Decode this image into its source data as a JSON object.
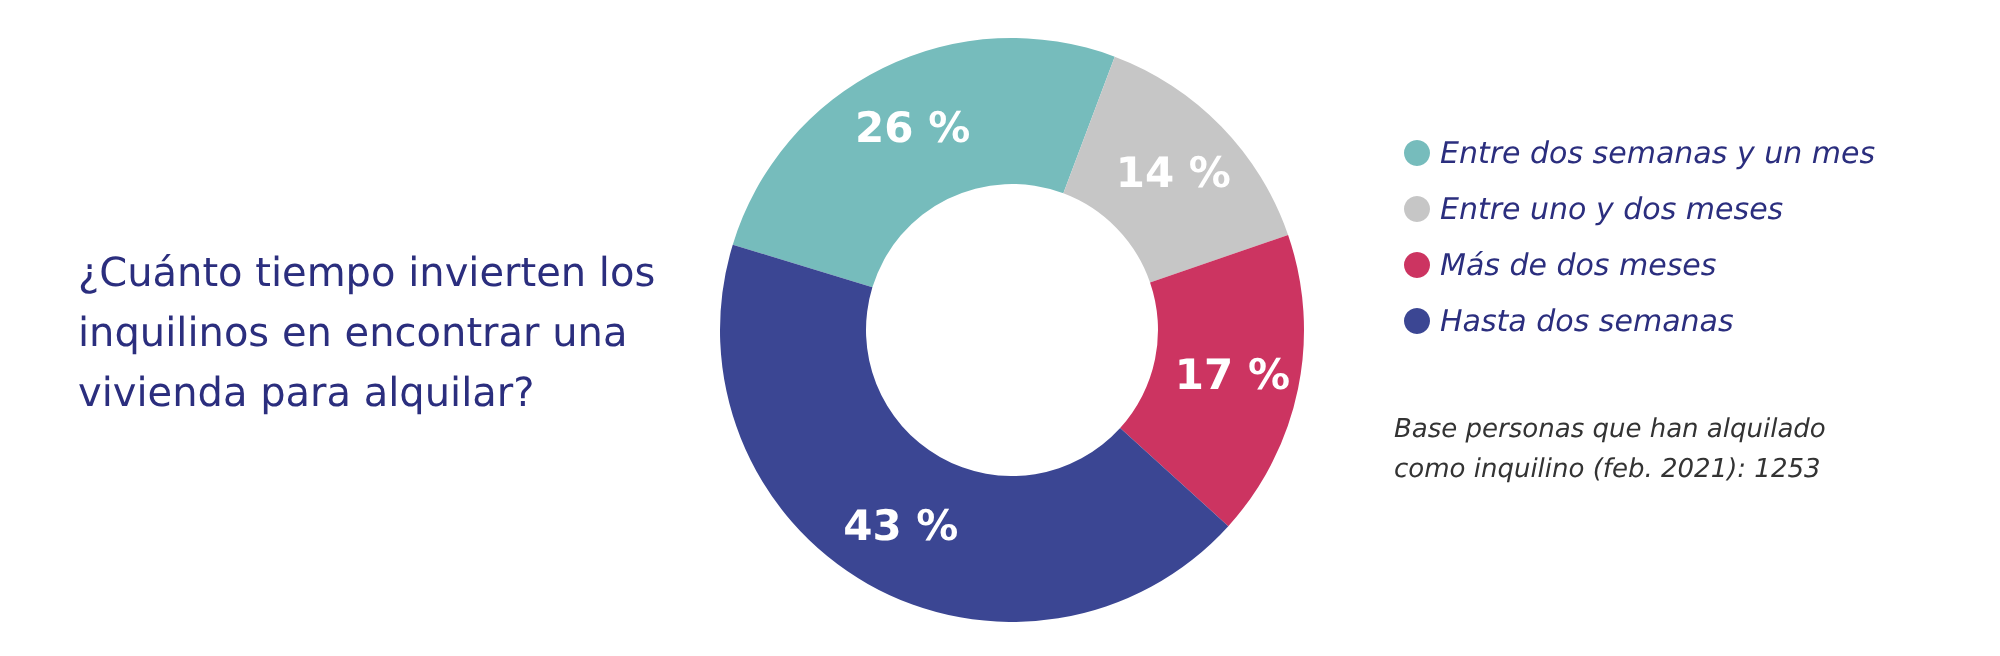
{
  "chart_data": {
    "type": "donut",
    "title": "¿Cuánto tiempo invierten los inquilinos en encontrar una vivienda para alquilar?",
    "categories": [
      "Entre dos semanas y un mes",
      "Entre uno y dos meses",
      "Más de dos meses",
      "Hasta dos semanas"
    ],
    "values": [
      26,
      14,
      17,
      43
    ],
    "colors": [
      "#76bcbc",
      "#c6c6c6",
      "#cc3461",
      "#3b4693"
    ],
    "value_labels": [
      "26 %",
      "14 %",
      "17 %",
      "43 %"
    ],
    "legend": "right",
    "annotations": [
      "Base personas que han alquilado como inquilino (feb. 2021): 1253"
    ]
  }
}
